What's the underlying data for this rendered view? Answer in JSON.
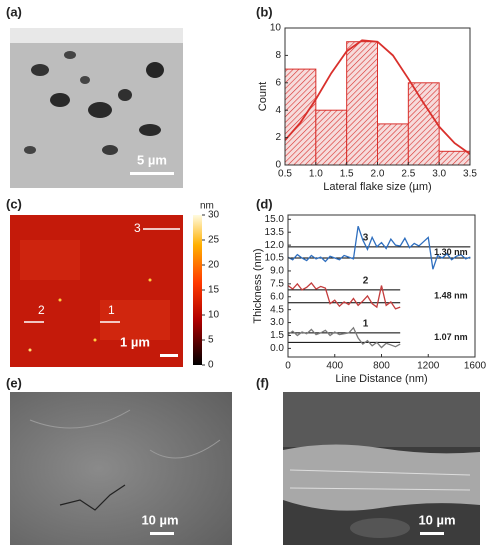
{
  "panels": {
    "a": {
      "label": "(a)",
      "scale": "5 µm"
    },
    "b": {
      "label": "(b)"
    },
    "c": {
      "label": "(c)",
      "scale": "1 µm",
      "profile_labels": [
        "3",
        "2",
        "1"
      ],
      "colorbar": {
        "unit": "nm",
        "lim": [
          0,
          30
        ],
        "ticks": [
          0,
          5,
          10,
          15,
          20,
          25,
          30
        ]
      }
    },
    "d": {
      "label": "(d)"
    },
    "e": {
      "label": "(e)",
      "scale": "10 µm"
    },
    "f": {
      "label": "(f)",
      "scale": "10 µm"
    }
  },
  "chart_data": [
    {
      "type": "histogram",
      "xlabel": "Lateral flake size (µm)",
      "ylabel": "Count",
      "bins": [
        0.5,
        1.0,
        1.5,
        2.0,
        2.5,
        3.0,
        3.5
      ],
      "values": [
        7,
        4,
        9,
        3,
        6,
        1
      ],
      "color": "#d9302c",
      "fit": {
        "x": [
          0.5,
          0.75,
          1.0,
          1.25,
          1.5,
          1.75,
          2.0,
          2.25,
          2.5,
          2.75,
          3.0,
          3.25,
          3.5
        ],
        "values": [
          1.8,
          3.1,
          4.8,
          6.7,
          8.3,
          9.1,
          9.0,
          8.0,
          6.3,
          4.5,
          2.8,
          1.6,
          0.8
        ]
      },
      "xlim": [
        0.5,
        3.5
      ],
      "ylim": [
        0,
        10
      ],
      "xticks": [
        0.5,
        {
          "value": 1.0,
          "label": "1.0"
        },
        1.5,
        {
          "value": 2.0,
          "label": "2.0"
        },
        2.5,
        {
          "value": 3.0,
          "label": "3.0"
        },
        3.5
      ],
      "yticks": [
        0,
        2,
        4,
        6,
        8,
        10
      ]
    },
    {
      "type": "line",
      "xlabel": "Line Distance (nm)",
      "ylabel": "Thickness (nm)",
      "xlim": [
        0,
        1600
      ],
      "ylim": [
        -1,
        15.5
      ],
      "xticks": [
        0,
        400,
        800,
        1200,
        1600
      ],
      "yticks": [
        {
          "value": 0,
          "label": "0.0"
        },
        1.5,
        {
          "value": 3,
          "label": "3.0"
        },
        4.5,
        {
          "value": 6,
          "label": "6.0"
        },
        7.5,
        {
          "value": 9,
          "label": "9.0"
        },
        10.5,
        {
          "value": 12,
          "label": "12.0"
        },
        13.5,
        {
          "value": 15,
          "label": "15.0"
        }
      ],
      "series": [
        {
          "name": "3",
          "color": "#2f6fbf",
          "annotation": "1.30 nm",
          "levels": [
            10.5,
            11.8
          ],
          "x": [
            0,
            40,
            80,
            120,
            160,
            200,
            240,
            280,
            320,
            360,
            400,
            440,
            480,
            520,
            560,
            600,
            640,
            680,
            720,
            760,
            800,
            840,
            880,
            920,
            960,
            1000,
            1040,
            1080,
            1120,
            1160,
            1200,
            1240,
            1280,
            1320,
            1360,
            1400,
            1440,
            1480,
            1520,
            1560
          ],
          "values": [
            10.6,
            10.3,
            10.9,
            10.5,
            10.2,
            10.8,
            10.4,
            10.6,
            10.1,
            10.7,
            10.5,
            10.3,
            10.8,
            10.6,
            10.4,
            14.2,
            12.6,
            11.5,
            12.9,
            11.8,
            12.3,
            11.6,
            12.7,
            12.0,
            11.9,
            12.8,
            11.7,
            12.2,
            11.9,
            12.4,
            12.9,
            9.2,
            10.8,
            10.5,
            11.0,
            10.3,
            10.7,
            10.9,
            10.4,
            10.6
          ]
        },
        {
          "name": "2",
          "color": "#c43c3c",
          "annotation": "1.48 nm",
          "levels": [
            5.3,
            6.8
          ],
          "x": [
            0,
            40,
            80,
            120,
            160,
            200,
            240,
            280,
            320,
            360,
            400,
            440,
            480,
            520,
            560,
            600,
            640,
            680,
            720,
            760,
            800,
            840,
            880,
            920,
            960
          ],
          "values": [
            7.3,
            6.9,
            7.5,
            6.8,
            7.1,
            7.6,
            6.9,
            7.2,
            7.0,
            5.2,
            5.6,
            4.9,
            5.4,
            5.1,
            5.8,
            5.0,
            5.5,
            6.1,
            5.2,
            4.8,
            7.3,
            5.0,
            5.4,
            4.6,
            4.8
          ]
        },
        {
          "name": "1",
          "color": "#7a7a7a",
          "annotation": "1.07 nm",
          "levels": [
            0.7,
            1.8
          ],
          "x": [
            0,
            40,
            80,
            120,
            160,
            200,
            240,
            280,
            320,
            360,
            400,
            440,
            480,
            520,
            560,
            600,
            640,
            680,
            720,
            760,
            800,
            840,
            880,
            920,
            960
          ],
          "values": [
            1.6,
            2.0,
            1.5,
            1.9,
            1.7,
            2.2,
            1.6,
            1.8,
            2.1,
            1.5,
            1.9,
            1.6,
            1.7,
            1.8,
            2.4,
            1.2,
            0.5,
            0.9,
            0.3,
            0.7,
            0.1,
            0.6,
            0.4,
            0.2,
            0.5
          ]
        }
      ]
    }
  ]
}
